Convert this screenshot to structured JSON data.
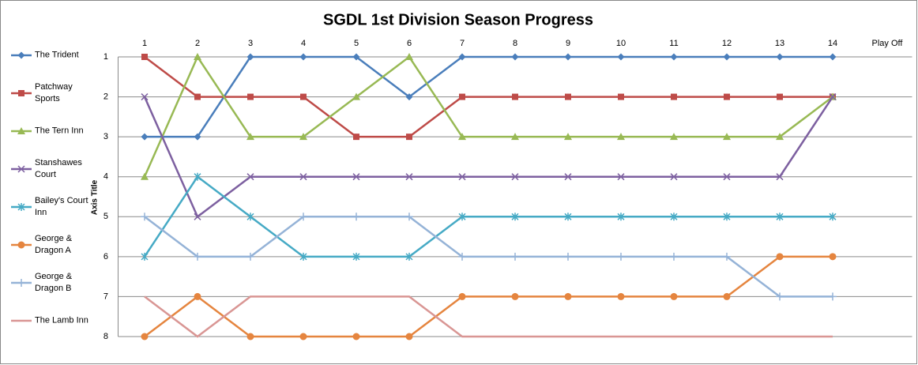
{
  "chart_data": {
    "type": "line",
    "title": "SGDL 1st Division Season Progress",
    "y_axis_label": "Axis Title",
    "categories": [
      "1",
      "2",
      "3",
      "4",
      "5",
      "6",
      "7",
      "8",
      "9",
      "10",
      "11",
      "12",
      "13",
      "14",
      "Play Off"
    ],
    "ylim": [
      1,
      8
    ],
    "yticks": [
      1,
      2,
      3,
      4,
      5,
      6,
      7,
      8
    ],
    "y_reversed": true,
    "grid": true,
    "legend": "left",
    "series": [
      {
        "name": "The Trident",
        "color": "#4a7ebb",
        "marker": "diamond",
        "values": [
          3,
          3,
          1,
          1,
          1,
          2,
          1,
          1,
          1,
          1,
          1,
          1,
          1,
          1,
          null
        ]
      },
      {
        "name": "Patchway Sports",
        "color": "#be4b48",
        "marker": "square",
        "values": [
          1,
          2,
          2,
          2,
          3,
          3,
          2,
          2,
          2,
          2,
          2,
          2,
          2,
          2,
          null
        ]
      },
      {
        "name": "The Tern Inn",
        "color": "#98b954",
        "marker": "triangle",
        "values": [
          4,
          1,
          3,
          3,
          2,
          1,
          3,
          3,
          3,
          3,
          3,
          3,
          3,
          2,
          null
        ]
      },
      {
        "name": "Stanshawes Court",
        "color": "#7d60a0",
        "marker": "x",
        "values": [
          2,
          5,
          4,
          4,
          4,
          4,
          4,
          4,
          4,
          4,
          4,
          4,
          4,
          2,
          null
        ]
      },
      {
        "name": "Bailey's Court Inn",
        "color": "#46aac5",
        "marker": "star",
        "values": [
          6,
          4,
          5,
          6,
          6,
          6,
          5,
          5,
          5,
          5,
          5,
          5,
          5,
          5,
          null
        ]
      },
      {
        "name": "George & Dragon A",
        "color": "#e5853f",
        "marker": "circle",
        "values": [
          8,
          7,
          8,
          8,
          8,
          8,
          7,
          7,
          7,
          7,
          7,
          7,
          6,
          6,
          null
        ]
      },
      {
        "name": "George & Dragon B",
        "color": "#95b3d7",
        "marker": "plus",
        "values": [
          5,
          6,
          6,
          5,
          5,
          5,
          6,
          6,
          6,
          6,
          6,
          6,
          7,
          7,
          null
        ]
      },
      {
        "name": "The Lamb Inn",
        "color": "#d99694",
        "marker": "none",
        "values": [
          7,
          8,
          7,
          7,
          7,
          7,
          8,
          8,
          8,
          8,
          8,
          8,
          8,
          8,
          null
        ]
      }
    ]
  }
}
